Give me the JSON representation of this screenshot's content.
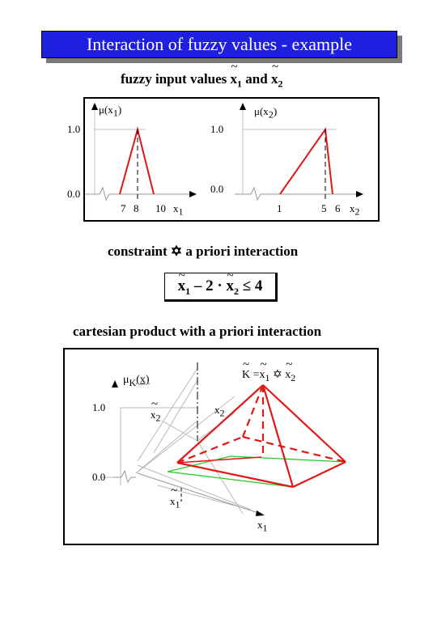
{
  "title": "Interaction of fuzzy values - example",
  "inputs_heading": {
    "prefix": "fuzzy input values ",
    "var1": "x",
    "sub1": "1",
    "conj": " and ",
    "var2": "x",
    "sub2": "2"
  },
  "chart1": {
    "ylabel": "μ(x",
    "ylabel_sub": "1",
    "ylabel_close": ")",
    "y_top": "1.0",
    "y_bottom": "0.0",
    "ticks": [
      "7",
      "8",
      "10"
    ],
    "xlabel": "x",
    "xlabel_sub": "1"
  },
  "chart2": {
    "ylabel": "μ(x",
    "ylabel_sub": "2",
    "ylabel_close": ")",
    "y_top": "1.0",
    "y_bottom": "0.0",
    "ticks": [
      "1",
      "5",
      "6"
    ],
    "xlabel": "x",
    "xlabel_sub": "2"
  },
  "constraint_heading": {
    "prefix": "constraint ",
    "symbol": "✡",
    "suffix": " a priori interaction"
  },
  "formula": {
    "var1": "x",
    "sub1": "1",
    "middle": " – 2 · ",
    "var2": "x",
    "sub2": "2",
    "rel": " ≤ 4"
  },
  "cartesian_heading": "cartesian product with a priori interaction",
  "chart3": {
    "mu_label": "μ",
    "mu_sub": "K",
    "mu_arg": "(x)",
    "y_top": "1.0",
    "y_bottom": "0.0",
    "k_label": "K = ",
    "k_x1": "x",
    "k_sub1": "1",
    "k_op": " ✡ ",
    "k_x2": "x",
    "k_sub2": "2",
    "x2_fuzzy": "x",
    "x2_fuzzy_sub": "2",
    "x2_axis": "x",
    "x2_axis_sub": "2",
    "x1_fuzzy": "x",
    "x1_fuzzy_sub": "1",
    "x1_axis": "x",
    "x1_axis_sub": "1"
  },
  "colors": {
    "banner": "#1f1fe0",
    "membership": "#e01818",
    "base": "#22cc22",
    "grid": "#b0b0b0"
  }
}
